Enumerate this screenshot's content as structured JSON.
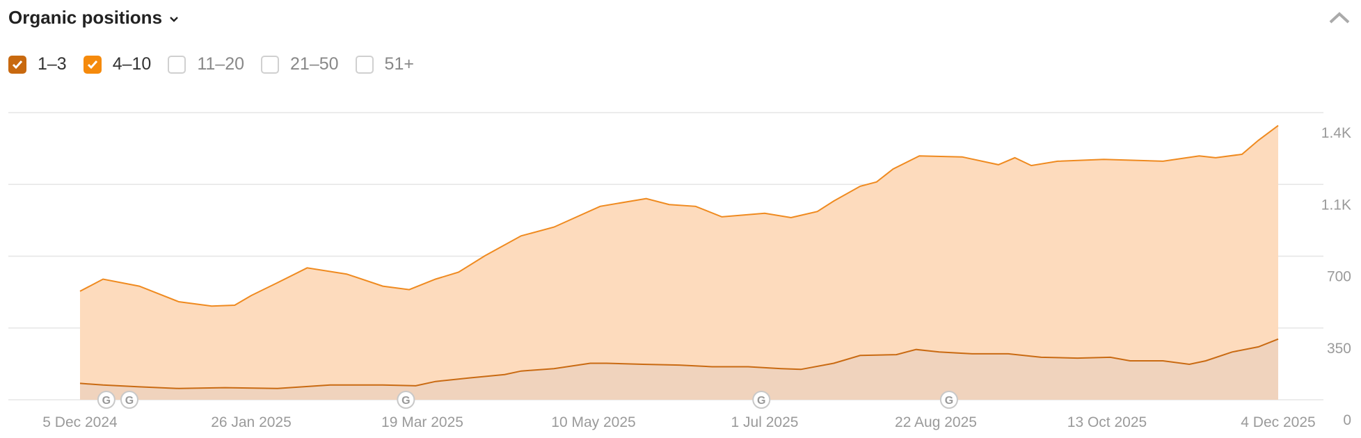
{
  "header": {
    "title": "Organic positions",
    "dropdown_icon": "chevron-down-icon",
    "collapse_icon": "chevron-up-icon"
  },
  "legend": [
    {
      "label": "1–3",
      "checked": true,
      "color": "#c8690f"
    },
    {
      "label": "4–10",
      "checked": true,
      "color": "#f58a0c"
    },
    {
      "label": "11–20",
      "checked": false
    },
    {
      "label": "21–50",
      "checked": false
    },
    {
      "label": "51+",
      "checked": false
    }
  ],
  "chart_data": {
    "type": "area",
    "stacked": true,
    "title": "Organic positions",
    "x_unit": "days since 5 Dec 2024",
    "xlim": [
      0,
      364
    ],
    "ylim": [
      0,
      1400
    ],
    "grid": true,
    "y_ticks": [
      {
        "value": 0,
        "label": "0"
      },
      {
        "value": 350,
        "label": "350"
      },
      {
        "value": 700,
        "label": "700"
      },
      {
        "value": 1050,
        "label": "1.1K"
      },
      {
        "value": 1400,
        "label": "1.4K"
      }
    ],
    "x_ticks": [
      {
        "day": 0,
        "label": "5 Dec 2024"
      },
      {
        "day": 52,
        "label": "26 Jan 2025"
      },
      {
        "day": 104,
        "label": "19 Mar 2025"
      },
      {
        "day": 156,
        "label": "10 May 2025"
      },
      {
        "day": 208,
        "label": "1 Jul 2025"
      },
      {
        "day": 260,
        "label": "22 Aug 2025"
      },
      {
        "day": 312,
        "label": "13 Oct 2025"
      },
      {
        "day": 364,
        "label": "4 Dec 2025"
      }
    ],
    "series": [
      {
        "name": "4–10 (stacked total)",
        "line": "#ef8a1f",
        "fill": "#fddbbd",
        "points": [
          [
            0,
            529
          ],
          [
            7,
            588
          ],
          [
            18,
            554
          ],
          [
            30,
            478
          ],
          [
            40,
            457
          ],
          [
            47,
            461
          ],
          [
            52,
            508
          ],
          [
            60,
            571
          ],
          [
            69,
            643
          ],
          [
            81,
            613
          ],
          [
            92,
            554
          ],
          [
            100,
            537
          ],
          [
            108,
            588
          ],
          [
            115,
            622
          ],
          [
            123,
            702
          ],
          [
            134,
            799
          ],
          [
            144,
            842
          ],
          [
            158,
            943
          ],
          [
            172,
            981
          ],
          [
            179,
            952
          ],
          [
            187,
            943
          ],
          [
            195,
            892
          ],
          [
            208,
            909
          ],
          [
            216,
            888
          ],
          [
            224,
            918
          ],
          [
            229,
            969
          ],
          [
            237,
            1041
          ],
          [
            242,
            1062
          ],
          [
            247,
            1125
          ],
          [
            255,
            1189
          ],
          [
            268,
            1184
          ],
          [
            279,
            1146
          ],
          [
            284,
            1180
          ],
          [
            289,
            1142
          ],
          [
            297,
            1163
          ],
          [
            311,
            1172
          ],
          [
            329,
            1163
          ],
          [
            340,
            1189
          ],
          [
            345,
            1180
          ],
          [
            353,
            1197
          ],
          [
            358,
            1265
          ],
          [
            364,
            1337
          ]
        ]
      },
      {
        "name": "1–3",
        "line": "#c96a12",
        "fill": "#f0d3bd",
        "points": [
          [
            0,
            80
          ],
          [
            7,
            72
          ],
          [
            18,
            63
          ],
          [
            30,
            55
          ],
          [
            44,
            59
          ],
          [
            60,
            55
          ],
          [
            76,
            72
          ],
          [
            92,
            72
          ],
          [
            102,
            68
          ],
          [
            108,
            89
          ],
          [
            118,
            106
          ],
          [
            129,
            123
          ],
          [
            134,
            140
          ],
          [
            144,
            152
          ],
          [
            155,
            178
          ],
          [
            160,
            178
          ],
          [
            171,
            173
          ],
          [
            182,
            169
          ],
          [
            192,
            161
          ],
          [
            203,
            161
          ],
          [
            213,
            152
          ],
          [
            219,
            148
          ],
          [
            229,
            178
          ],
          [
            237,
            216
          ],
          [
            248,
            220
          ],
          [
            254,
            245
          ],
          [
            261,
            233
          ],
          [
            271,
            224
          ],
          [
            282,
            224
          ],
          [
            292,
            207
          ],
          [
            303,
            203
          ],
          [
            313,
            207
          ],
          [
            319,
            190
          ],
          [
            329,
            190
          ],
          [
            337,
            173
          ],
          [
            342,
            190
          ],
          [
            350,
            233
          ],
          [
            358,
            258
          ],
          [
            364,
            296
          ]
        ]
      }
    ],
    "annotations": {
      "type": "google-update",
      "label": "G",
      "days": [
        8,
        15,
        99,
        207,
        264
      ]
    }
  }
}
